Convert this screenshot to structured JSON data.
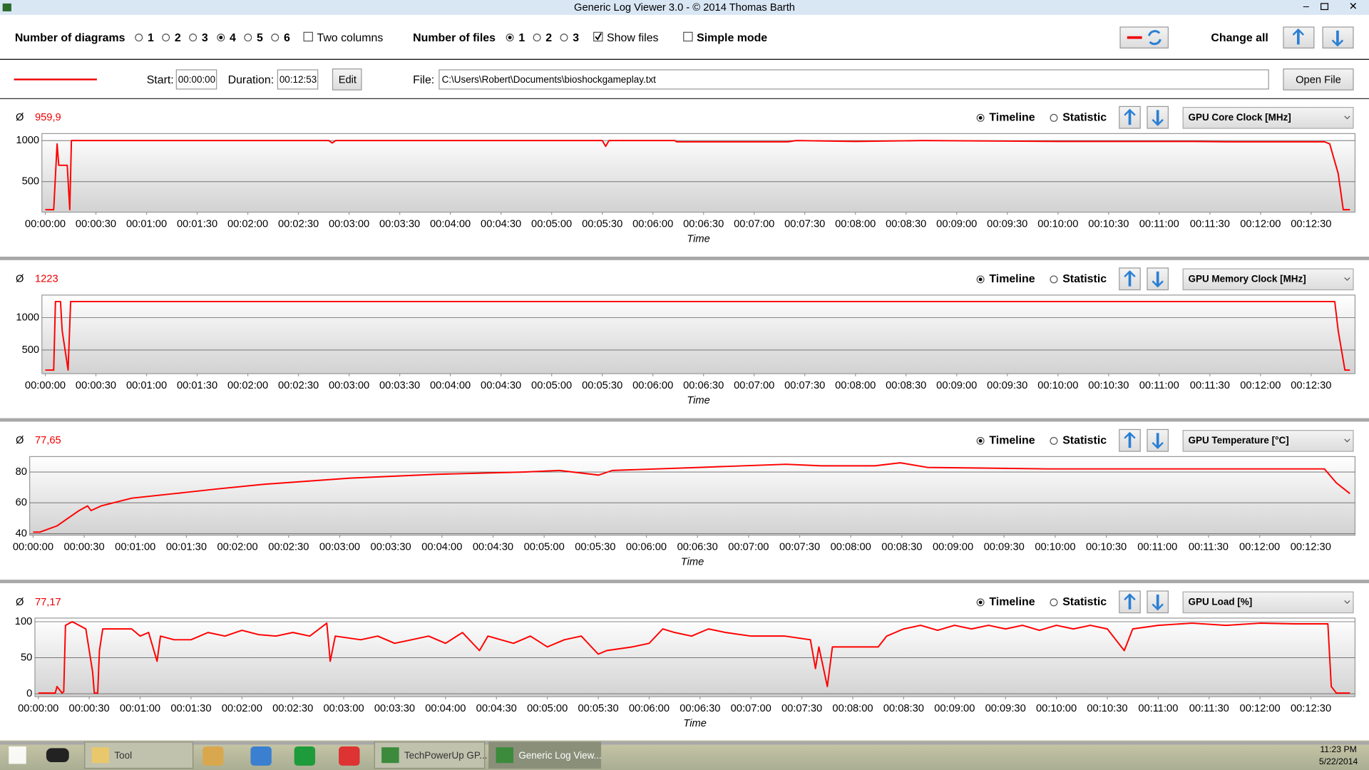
{
  "window": {
    "title": "Generic Log Viewer 3.0 - © 2014 Thomas Barth"
  },
  "toolbar": {
    "diagrams_label": "Number of diagrams",
    "diagram_options": [
      "1",
      "2",
      "3",
      "4",
      "5",
      "6"
    ],
    "two_columns": "Two columns",
    "files_label": "Number of files",
    "file_options": [
      "1",
      "2",
      "3"
    ],
    "show_files": "Show files",
    "simple_mode": "Simple mode",
    "change_all": "Change all"
  },
  "file_bar": {
    "start_label": "Start:",
    "start": "00:00:00",
    "duration_label": "Duration:",
    "duration": "00:12:53",
    "edit": "Edit",
    "file_label": "File:",
    "file": "C:\\Users\\Robert\\Documents\\bioshockgameplay.txt",
    "open_file": "Open File"
  },
  "panels": [
    {
      "average_symbol": "Ø",
      "average": "959,9",
      "timeline": "Timeline",
      "statistic": "Statistic",
      "sensor": "GPU Core Clock [MHz]"
    },
    {
      "average_symbol": "Ø",
      "average": "1223",
      "timeline": "Timeline",
      "statistic": "Statistic",
      "sensor": "GPU Memory Clock [MHz]"
    },
    {
      "average_symbol": "Ø",
      "average": "77,65",
      "timeline": "Timeline",
      "statistic": "Statistic",
      "sensor": "GPU Temperature [°C]"
    },
    {
      "average_symbol": "Ø",
      "average": "77,17",
      "timeline": "Timeline",
      "statistic": "Statistic",
      "sensor": "GPU Load [%]"
    }
  ],
  "chart_data": [
    {
      "type": "line",
      "xlabel": "Time",
      "grid": true,
      "xlim": [
        -2,
        776
      ],
      "ylim": [
        130,
        1085
      ],
      "yticks": [
        500,
        1000
      ],
      "xticks": [
        {
          "value": 0,
          "label": "00:00:00"
        },
        {
          "value": 30,
          "label": "00:00:30"
        },
        {
          "value": 60,
          "label": "00:01:00"
        },
        {
          "value": 90,
          "label": "00:01:30"
        },
        {
          "value": 120,
          "label": "00:02:00"
        },
        {
          "value": 150,
          "label": "00:02:30"
        },
        {
          "value": 180,
          "label": "00:03:00"
        },
        {
          "value": 210,
          "label": "00:03:30"
        },
        {
          "value": 240,
          "label": "00:04:00"
        },
        {
          "value": 270,
          "label": "00:04:30"
        },
        {
          "value": 300,
          "label": "00:05:00"
        },
        {
          "value": 330,
          "label": "00:05:30"
        },
        {
          "value": 360,
          "label": "00:06:00"
        },
        {
          "value": 390,
          "label": "00:06:30"
        },
        {
          "value": 420,
          "label": "00:07:00"
        },
        {
          "value": 450,
          "label": "00:07:30"
        },
        {
          "value": 480,
          "label": "00:08:00"
        },
        {
          "value": 510,
          "label": "00:08:30"
        },
        {
          "value": 540,
          "label": "00:09:00"
        },
        {
          "value": 570,
          "label": "00:09:30"
        },
        {
          "value": 600,
          "label": "00:10:00"
        },
        {
          "value": 630,
          "label": "00:10:30"
        },
        {
          "value": 660,
          "label": "00:11:00"
        },
        {
          "value": 690,
          "label": "00:11:30"
        },
        {
          "value": 720,
          "label": "00:12:00"
        },
        {
          "value": 750,
          "label": "00:12:30"
        }
      ],
      "x": [
        0,
        5,
        7,
        8,
        13,
        14.5,
        15.5,
        168,
        170,
        172,
        330,
        332,
        334,
        373,
        374,
        440,
        445,
        480,
        520,
        600,
        680,
        700,
        758,
        761,
        766,
        769,
        773
      ],
      "series": [
        {
          "color": "#ff0000",
          "values": [
            160,
            160,
            960,
            700,
            700,
            160,
            1000,
            1000,
            970,
            1000,
            1000,
            930,
            1000,
            1000,
            985,
            985,
            1000,
            990,
            1000,
            990,
            990,
            985,
            985,
            960,
            600,
            160,
            160
          ]
        }
      ]
    },
    {
      "type": "line",
      "xlabel": "Time",
      "grid": true,
      "xlim": [
        -2,
        776
      ],
      "ylim": [
        135,
        1350
      ],
      "yticks": [
        500,
        1000
      ],
      "xticks": [
        {
          "value": 0,
          "label": "00:00:00"
        },
        {
          "value": 30,
          "label": "00:00:30"
        },
        {
          "value": 60,
          "label": "00:01:00"
        },
        {
          "value": 90,
          "label": "00:01:30"
        },
        {
          "value": 120,
          "label": "00:02:00"
        },
        {
          "value": 150,
          "label": "00:02:30"
        },
        {
          "value": 180,
          "label": "00:03:00"
        },
        {
          "value": 210,
          "label": "00:03:30"
        },
        {
          "value": 240,
          "label": "00:04:00"
        },
        {
          "value": 270,
          "label": "00:04:30"
        },
        {
          "value": 300,
          "label": "00:05:00"
        },
        {
          "value": 330,
          "label": "00:05:30"
        },
        {
          "value": 360,
          "label": "00:06:00"
        },
        {
          "value": 390,
          "label": "00:06:30"
        },
        {
          "value": 420,
          "label": "00:07:00"
        },
        {
          "value": 450,
          "label": "00:07:30"
        },
        {
          "value": 480,
          "label": "00:08:00"
        },
        {
          "value": 510,
          "label": "00:08:30"
        },
        {
          "value": 540,
          "label": "00:09:00"
        },
        {
          "value": 570,
          "label": "00:09:30"
        },
        {
          "value": 600,
          "label": "00:10:00"
        },
        {
          "value": 630,
          "label": "00:10:30"
        },
        {
          "value": 660,
          "label": "00:11:00"
        },
        {
          "value": 690,
          "label": "00:11:30"
        },
        {
          "value": 720,
          "label": "00:12:00"
        },
        {
          "value": 750,
          "label": "00:12:30"
        }
      ],
      "x": [
        0,
        5,
        6,
        9,
        10,
        13.5,
        15,
        764,
        766,
        770,
        773
      ],
      "series": [
        {
          "color": "#ff0000",
          "values": [
            190,
            190,
            1250,
            1250,
            800,
            190,
            1250,
            1250,
            800,
            190,
            190
          ]
        }
      ]
    },
    {
      "type": "line",
      "xlabel": "Time",
      "grid": true,
      "xlim": [
        -2,
        776
      ],
      "ylim": [
        39,
        90
      ],
      "yticks": [
        40,
        60,
        80
      ],
      "xticks": [
        {
          "value": 0,
          "label": "00:00:00"
        },
        {
          "value": 30,
          "label": "00:00:30"
        },
        {
          "value": 60,
          "label": "00:01:00"
        },
        {
          "value": 90,
          "label": "00:01:30"
        },
        {
          "value": 120,
          "label": "00:02:00"
        },
        {
          "value": 150,
          "label": "00:02:30"
        },
        {
          "value": 180,
          "label": "00:03:00"
        },
        {
          "value": 210,
          "label": "00:03:30"
        },
        {
          "value": 240,
          "label": "00:04:00"
        },
        {
          "value": 270,
          "label": "00:04:30"
        },
        {
          "value": 300,
          "label": "00:05:00"
        },
        {
          "value": 330,
          "label": "00:05:30"
        },
        {
          "value": 360,
          "label": "00:06:00"
        },
        {
          "value": 390,
          "label": "00:06:30"
        },
        {
          "value": 420,
          "label": "00:07:00"
        },
        {
          "value": 450,
          "label": "00:07:30"
        },
        {
          "value": 480,
          "label": "00:08:00"
        },
        {
          "value": 510,
          "label": "00:08:30"
        },
        {
          "value": 540,
          "label": "00:09:00"
        },
        {
          "value": 570,
          "label": "00:09:30"
        },
        {
          "value": 600,
          "label": "00:10:00"
        },
        {
          "value": 630,
          "label": "00:10:30"
        },
        {
          "value": 660,
          "label": "00:11:00"
        },
        {
          "value": 690,
          "label": "00:11:30"
        },
        {
          "value": 720,
          "label": "00:12:00"
        },
        {
          "value": 750,
          "label": "00:12:30"
        }
      ],
      "x": [
        0,
        4,
        14,
        27,
        32,
        34,
        40,
        58,
        83,
        108,
        135,
        186,
        237,
        289,
        309,
        332,
        340,
        391,
        442,
        463,
        494,
        509,
        525,
        596,
        699,
        758,
        765,
        773
      ],
      "series": [
        {
          "color": "#ff0000",
          "values": [
            41,
            41,
            45,
            55,
            58,
            55,
            58,
            63,
            66,
            69,
            72,
            76,
            78.5,
            80,
            81,
            78,
            81,
            83,
            85,
            84,
            84,
            86,
            83,
            82,
            82,
            82,
            73,
            66
          ]
        }
      ]
    },
    {
      "type": "line",
      "xlabel": "Time",
      "grid": true,
      "xlim": [
        -2,
        776
      ],
      "ylim": [
        -4,
        105
      ],
      "yticks": [
        0,
        50,
        100
      ],
      "xticks": [
        {
          "value": 0,
          "label": "00:00:00"
        },
        {
          "value": 30,
          "label": "00:00:30"
        },
        {
          "value": 60,
          "label": "00:01:00"
        },
        {
          "value": 90,
          "label": "00:01:30"
        },
        {
          "value": 120,
          "label": "00:02:00"
        },
        {
          "value": 150,
          "label": "00:02:30"
        },
        {
          "value": 180,
          "label": "00:03:00"
        },
        {
          "value": 210,
          "label": "00:03:30"
        },
        {
          "value": 240,
          "label": "00:04:00"
        },
        {
          "value": 270,
          "label": "00:04:30"
        },
        {
          "value": 300,
          "label": "00:05:00"
        },
        {
          "value": 330,
          "label": "00:05:30"
        },
        {
          "value": 360,
          "label": "00:06:00"
        },
        {
          "value": 390,
          "label": "00:06:30"
        },
        {
          "value": 420,
          "label": "00:07:00"
        },
        {
          "value": 450,
          "label": "00:07:30"
        },
        {
          "value": 480,
          "label": "00:08:00"
        },
        {
          "value": 510,
          "label": "00:08:30"
        },
        {
          "value": 540,
          "label": "00:09:00"
        },
        {
          "value": 570,
          "label": "00:09:30"
        },
        {
          "value": 600,
          "label": "00:10:00"
        },
        {
          "value": 630,
          "label": "00:10:30"
        },
        {
          "value": 660,
          "label": "00:11:00"
        },
        {
          "value": 690,
          "label": "00:11:30"
        },
        {
          "value": 720,
          "label": "00:12:00"
        },
        {
          "value": 750,
          "label": "00:12:30"
        }
      ],
      "x": [
        0,
        10,
        11,
        14,
        15,
        16,
        20,
        28,
        32,
        33,
        35,
        36,
        38,
        45,
        55,
        60,
        65,
        70,
        72,
        80,
        90,
        100,
        110,
        120,
        130,
        140,
        150,
        160,
        170,
        172,
        175,
        190,
        200,
        210,
        220,
        230,
        240,
        250,
        260,
        265,
        280,
        290,
        300,
        310,
        320,
        330,
        335,
        350,
        360,
        368,
        375,
        385,
        395,
        405,
        420,
        440,
        455,
        458,
        460,
        465,
        468,
        480,
        495,
        500,
        510,
        520,
        530,
        540,
        550,
        560,
        570,
        580,
        590,
        600,
        610,
        620,
        630,
        640,
        645,
        660,
        680,
        700,
        720,
        740,
        760,
        762,
        765,
        773
      ],
      "series": [
        {
          "color": "#ff0000",
          "values": [
            1,
            1,
            10,
            1,
            3,
            95,
            100,
            90,
            30,
            1,
            1,
            60,
            90,
            90,
            90,
            80,
            85,
            45,
            80,
            75,
            75,
            85,
            80,
            88,
            82,
            80,
            85,
            80,
            98,
            45,
            80,
            75,
            80,
            70,
            75,
            80,
            70,
            85,
            60,
            80,
            70,
            80,
            65,
            75,
            80,
            55,
            60,
            65,
            70,
            90,
            85,
            80,
            90,
            85,
            80,
            80,
            75,
            35,
            65,
            10,
            65,
            65,
            65,
            80,
            90,
            95,
            88,
            95,
            90,
            95,
            90,
            95,
            88,
            95,
            90,
            95,
            90,
            60,
            90,
            95,
            98,
            95,
            98,
            97,
            97,
            10,
            1,
            1
          ]
        }
      ]
    }
  ],
  "taskbar": {
    "apps": [
      "Tool",
      "TechPowerUp GP...",
      "Generic Log View..."
    ],
    "time": "11:23 PM",
    "date": "5/22/2014"
  }
}
